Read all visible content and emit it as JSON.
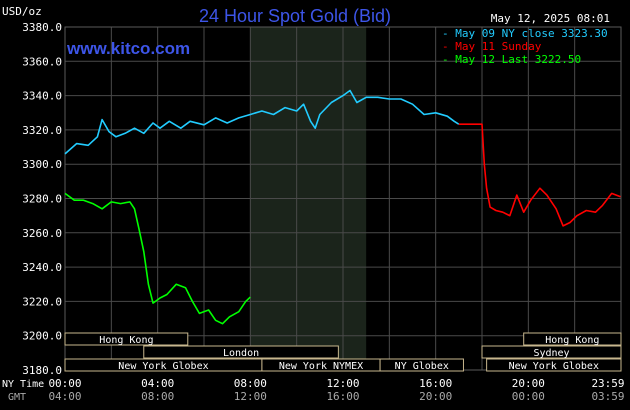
{
  "chart_data": {
    "type": "line",
    "title": "24 Hour Spot Gold (Bid)",
    "source": "www.kitco.com",
    "timestamp": "May 12, 2025 08:01",
    "ylabel": "USD/oz",
    "ylim": [
      3180,
      3380
    ],
    "y_ticks": [
      "3380.0",
      "3360.0",
      "3340.0",
      "3320.0",
      "3300.0",
      "3280.0",
      "3260.0",
      "3240.0",
      "3220.0",
      "3200.0",
      "3180.0"
    ],
    "x_axis_label": "NY Time",
    "x_ticks": [
      "00:00",
      "04:00",
      "08:00",
      "12:00",
      "16:00",
      "20:00",
      "23:59"
    ],
    "gmt_label": "GMT",
    "gmt_ticks": [
      "04:00",
      "08:00",
      "12:00",
      "16:00",
      "20:00",
      "00:00",
      "03:59"
    ],
    "legend": [
      {
        "label": "May 09 NY close 3323.30",
        "color": "#22ccff"
      },
      {
        "label": "May 11 Sunday",
        "color": "#ff0000"
      },
      {
        "label": "May 12 Last 3222.50",
        "color": "#00ff00"
      }
    ],
    "grid": true,
    "x_range_hours": [
      0,
      24
    ],
    "series": [
      {
        "name": "May 09 NY close 3323.30",
        "color": "#22ccff",
        "points": [
          [
            0,
            3306
          ],
          [
            0.5,
            3312
          ],
          [
            1,
            3311
          ],
          [
            1.4,
            3316
          ],
          [
            1.6,
            3326
          ],
          [
            1.9,
            3319
          ],
          [
            2.2,
            3316
          ],
          [
            2.6,
            3318
          ],
          [
            3,
            3321
          ],
          [
            3.4,
            3318
          ],
          [
            3.8,
            3324
          ],
          [
            4.1,
            3321
          ],
          [
            4.5,
            3325
          ],
          [
            5,
            3321
          ],
          [
            5.4,
            3325
          ],
          [
            6,
            3323
          ],
          [
            6.5,
            3327
          ],
          [
            7,
            3324
          ],
          [
            7.5,
            3327
          ],
          [
            8,
            3329
          ],
          [
            8.5,
            3331
          ],
          [
            9,
            3329
          ],
          [
            9.5,
            3333
          ],
          [
            10,
            3331
          ],
          [
            10.3,
            3335
          ],
          [
            10.6,
            3325
          ],
          [
            10.8,
            3321
          ],
          [
            11,
            3329
          ],
          [
            11.5,
            3336
          ],
          [
            12,
            3340
          ],
          [
            12.3,
            3343
          ],
          [
            12.6,
            3336
          ],
          [
            13,
            3339
          ],
          [
            13.5,
            3339
          ],
          [
            14,
            3338
          ],
          [
            14.5,
            3338
          ],
          [
            15,
            3335
          ],
          [
            15.5,
            3329
          ],
          [
            16,
            3330
          ],
          [
            16.5,
            3328
          ],
          [
            16.8,
            3325
          ],
          [
            17,
            3323.3
          ]
        ]
      },
      {
        "name": "May 11 Sunday",
        "color": "#ff0000",
        "points": [
          [
            17,
            3323.3
          ],
          [
            18,
            3323.3
          ],
          [
            18.1,
            3300
          ],
          [
            18.2,
            3286
          ],
          [
            18.35,
            3275
          ],
          [
            18.6,
            3273
          ],
          [
            18.9,
            3272
          ],
          [
            19.2,
            3270
          ],
          [
            19.5,
            3282
          ],
          [
            19.8,
            3272
          ],
          [
            20.1,
            3279
          ],
          [
            20.5,
            3286
          ],
          [
            20.8,
            3282
          ],
          [
            21.2,
            3274
          ],
          [
            21.5,
            3264
          ],
          [
            21.8,
            3266
          ],
          [
            22.1,
            3270
          ],
          [
            22.5,
            3273
          ],
          [
            22.9,
            3272
          ],
          [
            23.2,
            3276
          ],
          [
            23.6,
            3283
          ],
          [
            23.98,
            3281
          ]
        ]
      },
      {
        "name": "May 12 Last 3222.50",
        "color": "#00ff00",
        "points": [
          [
            0,
            3283
          ],
          [
            0.4,
            3279
          ],
          [
            0.8,
            3279
          ],
          [
            1.2,
            3277
          ],
          [
            1.6,
            3274
          ],
          [
            2,
            3278
          ],
          [
            2.4,
            3277
          ],
          [
            2.8,
            3278
          ],
          [
            3,
            3274
          ],
          [
            3.2,
            3262
          ],
          [
            3.4,
            3249
          ],
          [
            3.6,
            3230
          ],
          [
            3.8,
            3219
          ],
          [
            4.1,
            3222
          ],
          [
            4.4,
            3224
          ],
          [
            4.8,
            3230
          ],
          [
            5.2,
            3228
          ],
          [
            5.5,
            3220
          ],
          [
            5.8,
            3213
          ],
          [
            6.2,
            3215
          ],
          [
            6.5,
            3209
          ],
          [
            6.8,
            3207
          ],
          [
            7.1,
            3211
          ],
          [
            7.5,
            3214
          ],
          [
            7.8,
            3220
          ],
          [
            8,
            3222.5
          ]
        ]
      }
    ],
    "sessions": {
      "upper": [
        {
          "label": "Hong Kong",
          "start": 0,
          "end": 5.3
        },
        {
          "label": "Hong Kong",
          "start": 19.8,
          "end": 24
        }
      ],
      "middle": [
        {
          "label": "London",
          "start": 3.4,
          "end": 11.8
        },
        {
          "label": "Sydney",
          "start": 18.0,
          "end": 24
        }
      ],
      "lower": [
        {
          "label": "New York Globex",
          "start": 0,
          "end": 8.5
        },
        {
          "label": "New York NYMEX",
          "start": 8.5,
          "end": 13.6
        },
        {
          "label": "NY Globex",
          "start": 13.6,
          "end": 17.2
        },
        {
          "label": "New York Globex",
          "start": 18.2,
          "end": 24
        }
      ]
    }
  }
}
